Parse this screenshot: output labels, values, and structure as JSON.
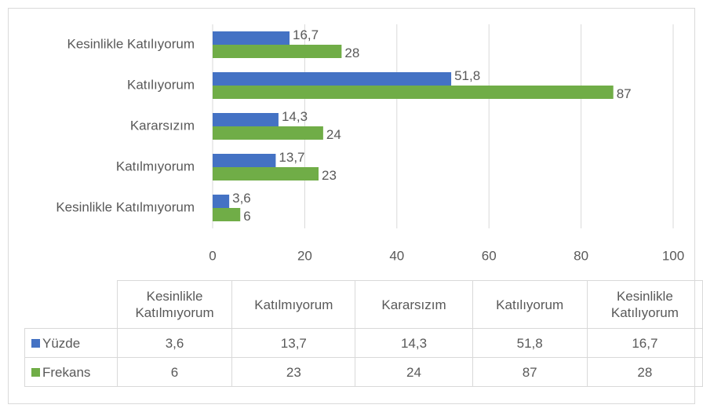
{
  "chart_data": {
    "type": "bar",
    "orientation": "horizontal",
    "categories": [
      "Kesinlikle Katılmıyorum",
      "Katılmıyorum",
      "Kararsızım",
      "Katılıyorum",
      "Kesinlikle Katılıyorum"
    ],
    "series": [
      {
        "name": "Yüzde",
        "color": "#4472c4",
        "values": [
          3.6,
          13.7,
          14.3,
          51.8,
          16.7
        ],
        "value_labels": [
          "3,6",
          "13,7",
          "14,3",
          "51,8",
          "16,7"
        ]
      },
      {
        "name": "Frekans",
        "color": "#70ad47",
        "values": [
          6,
          23,
          24,
          87,
          28
        ]
      }
    ],
    "xlim": [
      0,
      100
    ],
    "xticks": [
      0,
      20,
      40,
      60,
      80,
      100
    ],
    "grid": true,
    "data_table": true
  }
}
